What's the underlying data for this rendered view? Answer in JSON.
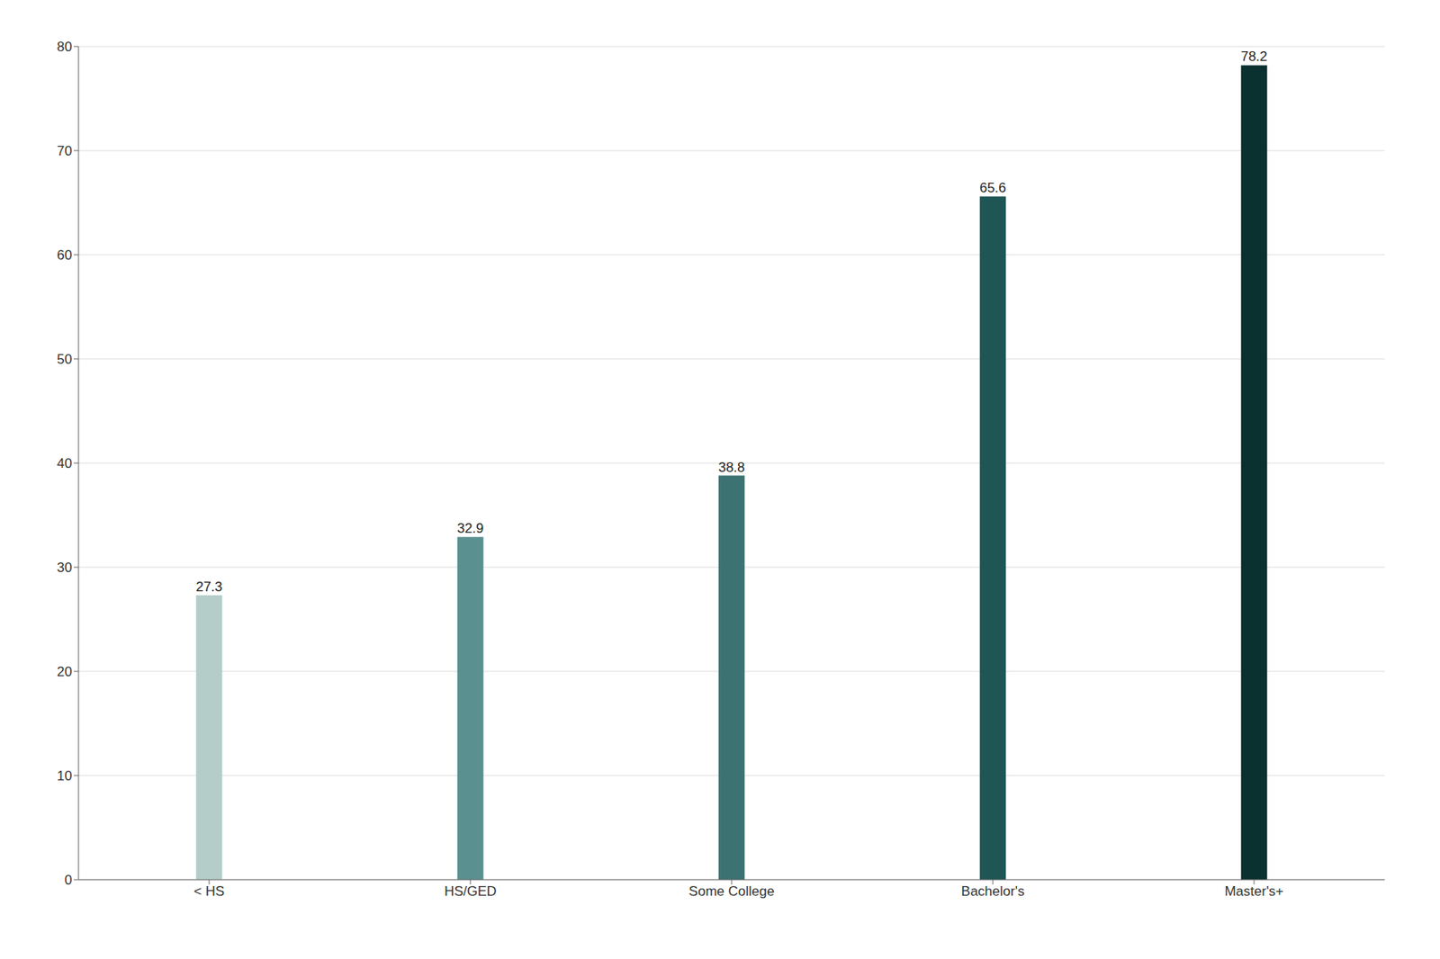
{
  "chart_data": {
    "type": "bar",
    "categories": [
      "< HS",
      "HS/GED",
      "Some College",
      "Bachelor's",
      "Master's+"
    ],
    "values": [
      27.3,
      32.9,
      38.8,
      65.6,
      78.2
    ],
    "colors": [
      "#b5cdc9",
      "#5a9090",
      "#3d7272",
      "#1e5555",
      "#0a3030"
    ],
    "ylim": [
      0,
      80
    ],
    "yticks": [
      0,
      10,
      20,
      30,
      40,
      50,
      60,
      70,
      80
    ],
    "grid": true,
    "data_labels": true
  }
}
